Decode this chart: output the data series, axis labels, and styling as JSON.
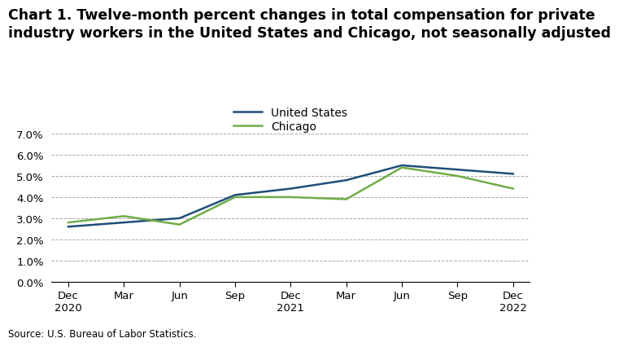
{
  "title_line1": "Chart 1. Twelve-month percent changes in total compensation for private",
  "title_line2": "industry workers in the United States and Chicago, not seasonally adjusted",
  "x_labels": [
    "Dec\n2020",
    "Mar",
    "Jun",
    "Sep",
    "Dec\n2021",
    "Mar",
    "Jun",
    "Sep",
    "Dec\n2022"
  ],
  "us_values": [
    2.6,
    2.8,
    3.0,
    4.1,
    4.4,
    4.8,
    5.5,
    5.3,
    5.1
  ],
  "chicago_values": [
    2.8,
    3.1,
    2.7,
    4.0,
    4.0,
    3.9,
    5.4,
    5.0,
    4.4
  ],
  "us_color": "#1f4e79",
  "chicago_color": "#70ad47",
  "ylim": [
    0.0,
    7.0
  ],
  "yticks": [
    0.0,
    1.0,
    2.0,
    3.0,
    4.0,
    5.0,
    6.0,
    7.0
  ],
  "legend_labels": [
    "United States",
    "Chicago"
  ],
  "source_text": "Source: U.S. Bureau of Labor Statistics.",
  "line_width": 1.8,
  "title_fontsize": 12.5,
  "tick_fontsize": 9.5,
  "legend_fontsize": 10,
  "source_fontsize": 8.5,
  "grid_color": "#aaaaaa",
  "grid_linestyle": "--",
  "grid_linewidth": 0.7
}
